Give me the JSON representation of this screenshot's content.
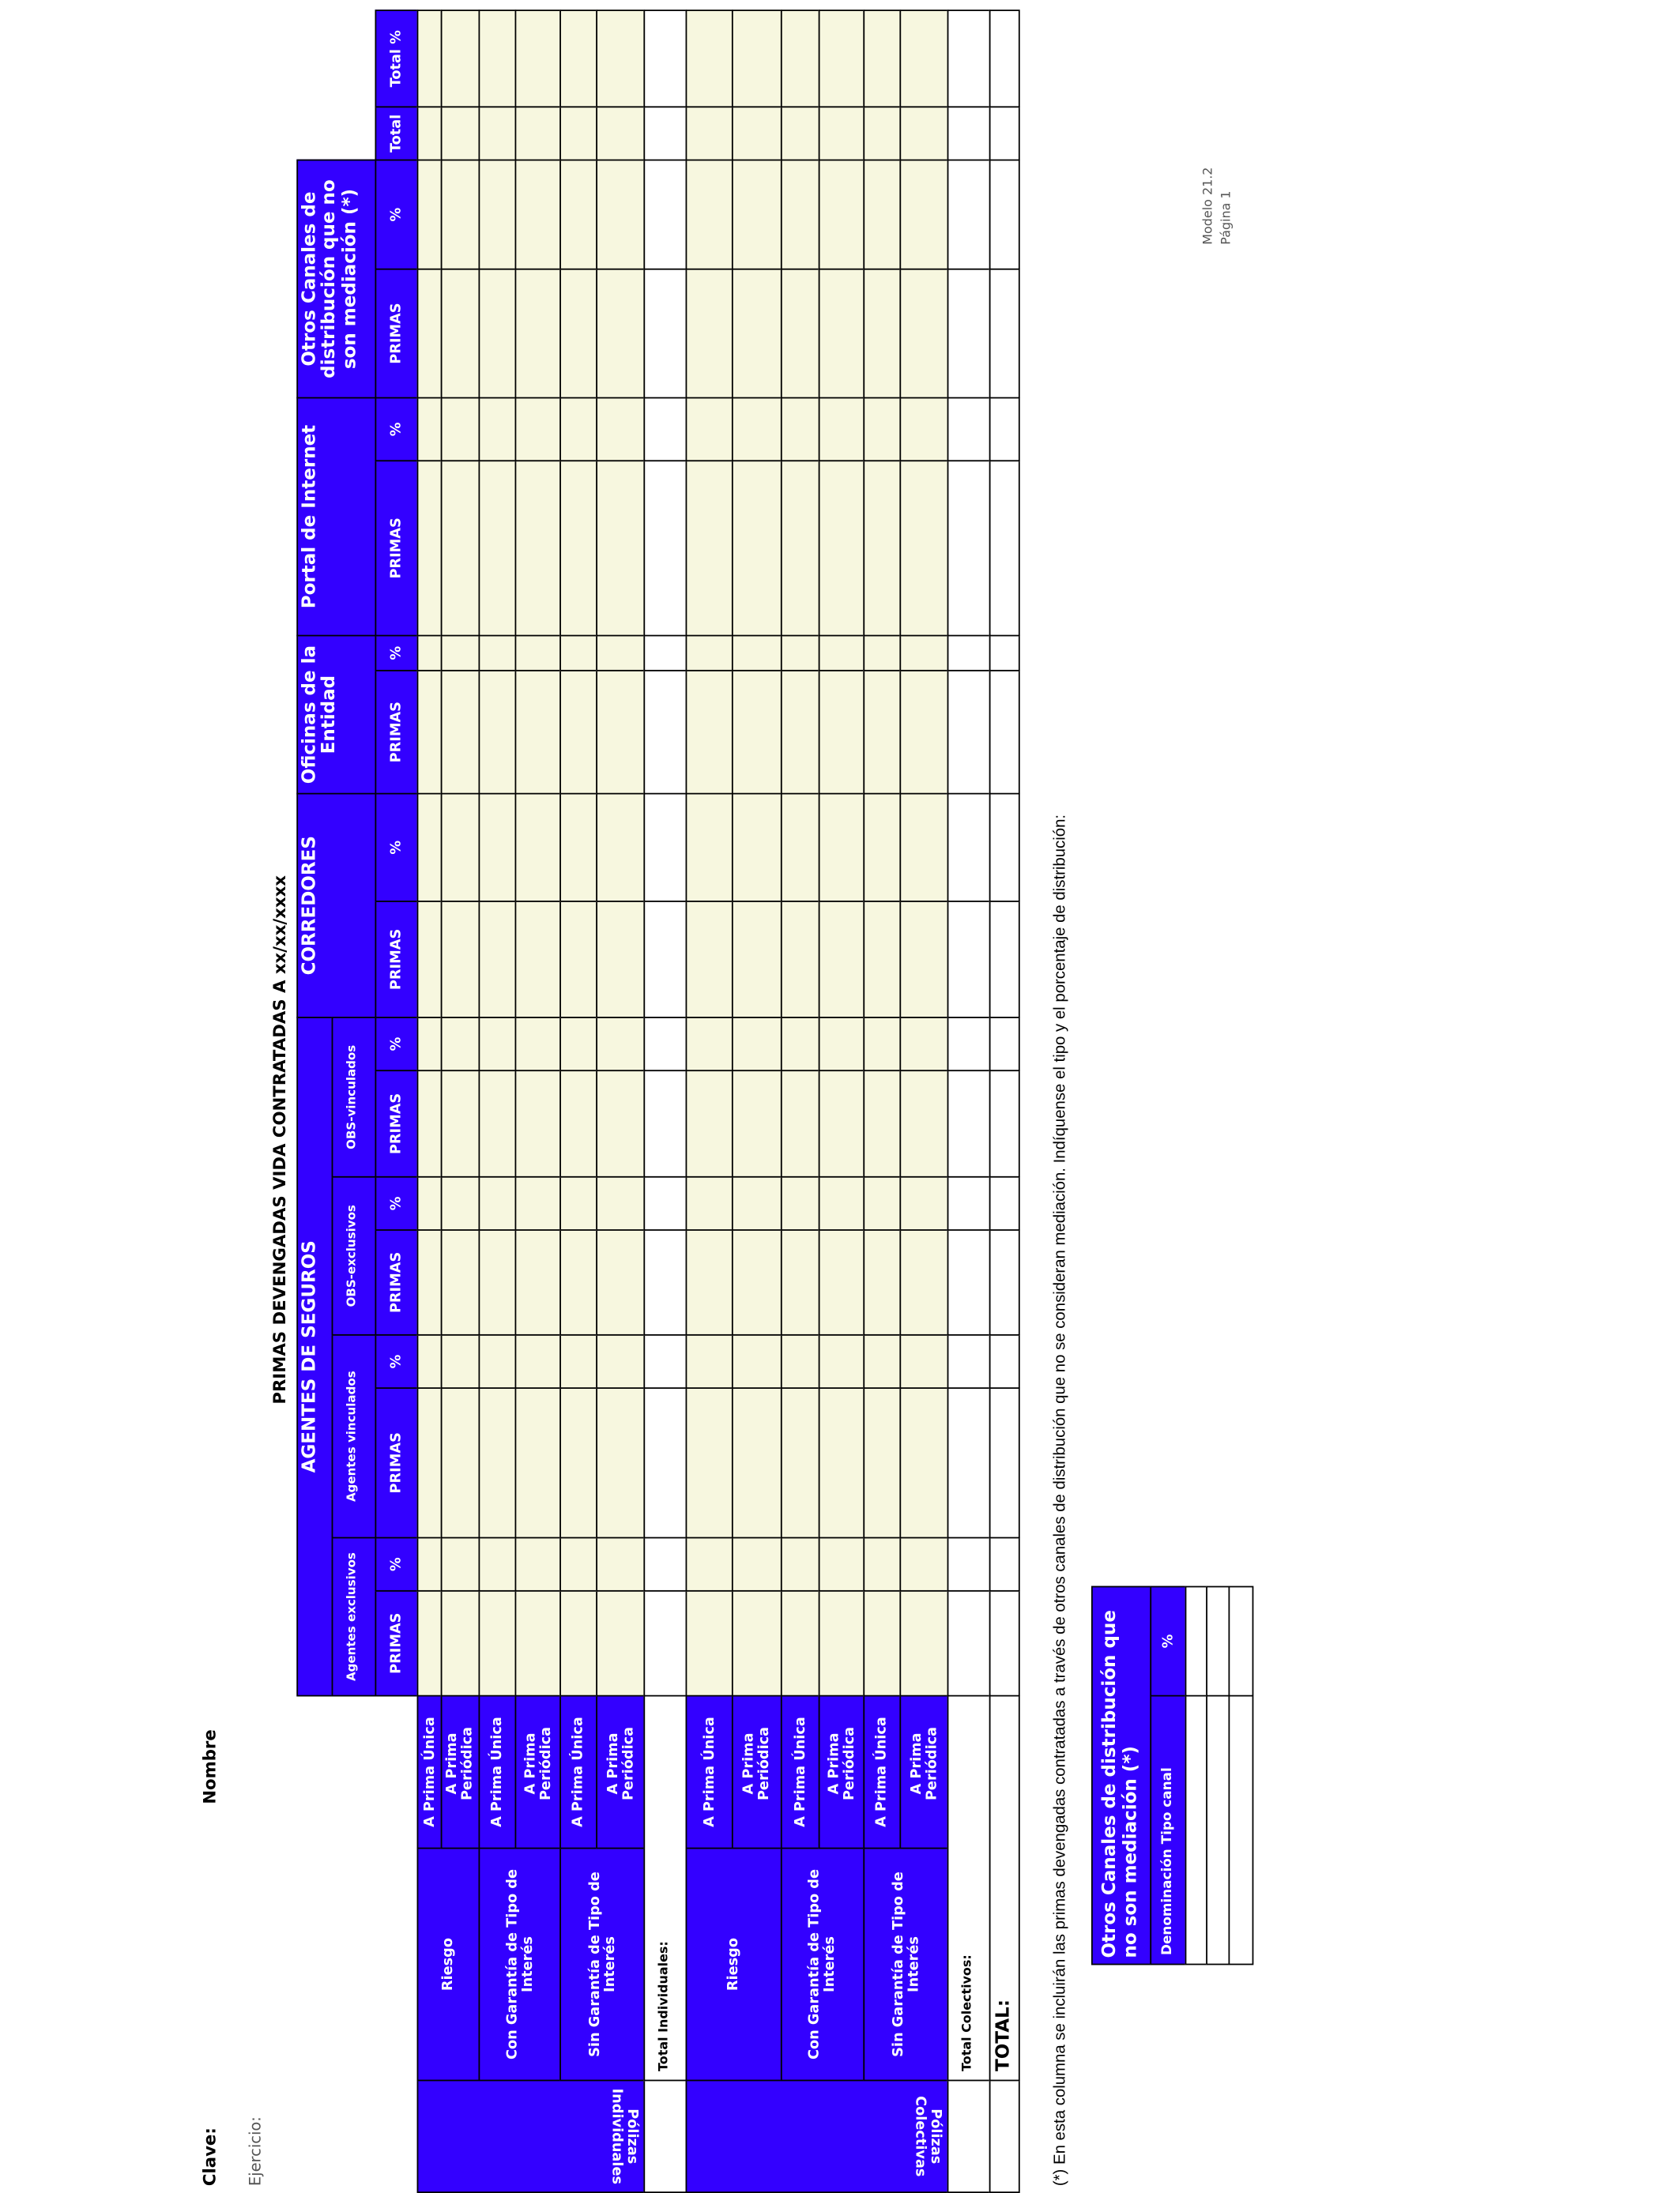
{
  "header": {
    "clave": "Clave:",
    "nombre": "Nombre",
    "ejercicio": "Ejercicio:",
    "modelo": "Modelo 21.2",
    "pagina": "Página 1",
    "title": "PRIMAS DEVENGADAS VIDA CONTRATADAS A xx/xx/xxxx"
  },
  "table": {
    "groups": [
      "AGENTES DE SEGUROS",
      "CORREDORES",
      "Oficinas de la Entidad",
      "Portal de Internet",
      "Otros Canales de distribución que no son mediación (*)"
    ],
    "agent_subgroups": [
      "Agentes exclusivos",
      "Agentes vinculados",
      "OBS-exclusivos",
      "OBS-vinculados"
    ],
    "column_labels": [
      "PRIMAS",
      "%",
      "PRIMAS",
      "%",
      "PRIMAS",
      "%",
      "PRIMAS",
      "%",
      "PRIMAS",
      "%",
      "PRIMAS",
      "%",
      "PRIMAS",
      "%",
      "PRIMAS",
      "%",
      "Total",
      "Total %"
    ],
    "sections": [
      {
        "label": "Pólizas Individuales",
        "rows": [
          {
            "group": "Riesgo",
            "types": [
              "A Prima Única",
              "A Prima Periódica"
            ]
          },
          {
            "group": "Con Garantía de Tipo de Interés",
            "types": [
              "A Prima Única",
              "A Prima Periódica"
            ]
          },
          {
            "group": "Sin Garantía de Tipo de Interés",
            "types": [
              "A Prima Única",
              "A Prima Periódica"
            ]
          }
        ],
        "total": "Total Individuales:"
      },
      {
        "label": "Pólizas Colectivas",
        "rows": [
          {
            "group": "Riesgo",
            "types": [
              "A Prima Única",
              "A Prima Periódica"
            ]
          },
          {
            "group": "Con Garantía de Tipo de Interés",
            "types": [
              "A Prima Única",
              "A Prima Periódica"
            ]
          },
          {
            "group": "Sin Garantía de Tipo de Interés",
            "types": [
              "A Prima Única",
              "A Prima Periódica"
            ]
          }
        ],
        "total": "Total Colectivos:"
      }
    ],
    "grand_total": "TOTAL:"
  },
  "footnote": "(*) En esta columna se incluirán las primas devengadas contratadas  a través de otros canales de distribución que no se consideran mediación.  Indíquense el tipo y el porcentaje de distribución:",
  "small_table": {
    "title": "Otros Canales de distribución que no son mediación (*)",
    "columns": [
      "Denominación Tipo canal",
      "%"
    ]
  }
}
